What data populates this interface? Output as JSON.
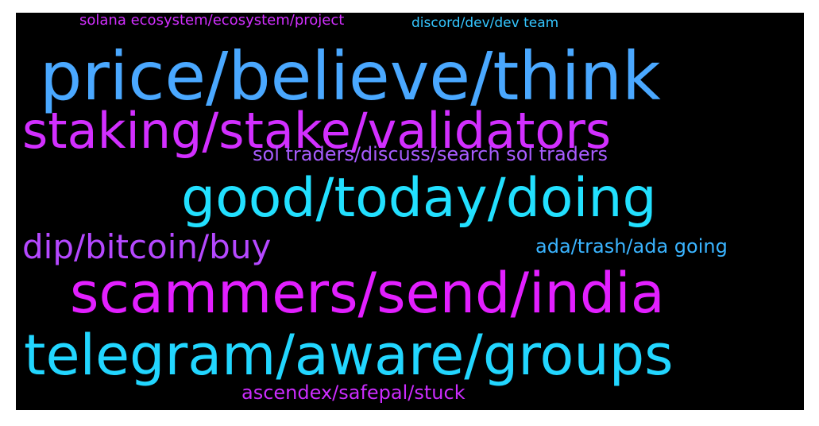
{
  "words": [
    {
      "text": "price/believe/think",
      "color": "#4aa8ff"
    },
    {
      "text": "staking/stake/validators",
      "color": "#d22fff"
    },
    {
      "text": "good/today/doing",
      "color": "#22e0ff"
    },
    {
      "text": "scammers/send/india",
      "color": "#e21fff"
    },
    {
      "text": "telegram/aware/groups",
      "color": "#22d6ff"
    },
    {
      "text": "dip/bitcoin/buy",
      "color": "#b548ff"
    },
    {
      "text": "sol traders/discuss/search sol traders",
      "color": "#a85cff"
    },
    {
      "text": "ada/trash/ada going",
      "color": "#3ab4ff"
    },
    {
      "text": "ascendex/safepal/stuck",
      "color": "#cc2cff"
    },
    {
      "text": "solana ecosystem/ecosystem/project",
      "color": "#d22fff"
    },
    {
      "text": "discord/dev/dev team",
      "color": "#34c6ff"
    }
  ]
}
